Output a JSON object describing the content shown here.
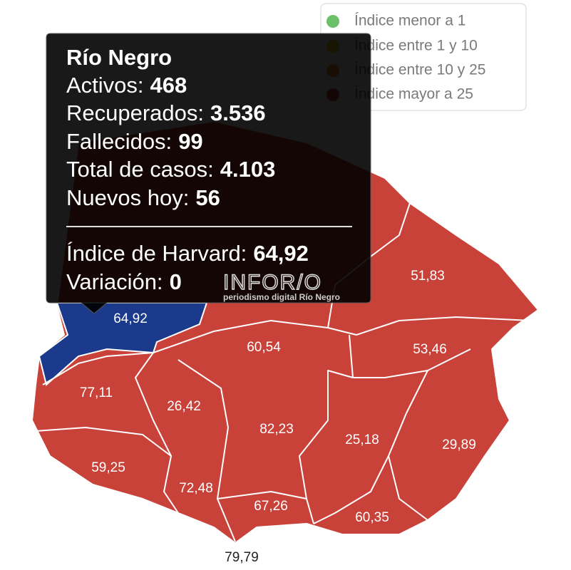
{
  "legend": [
    {
      "label": "Índice menor a 1",
      "color": "#6cc06a"
    },
    {
      "label": "Índice entre 1 y 10",
      "color": "#f2d11b"
    },
    {
      "label": "Índice entre 10 y 25",
      "color": "#f08a24"
    },
    {
      "label": "Índice mayor a 25",
      "color": "#c9423a"
    }
  ],
  "tooltip": {
    "title": "Río Negro",
    "rows": [
      {
        "label": "Activos:",
        "value": "468"
      },
      {
        "label": "Recuperados:",
        "value": "3.536"
      },
      {
        "label": "Fallecidos:",
        "value": "99"
      },
      {
        "label": "Total de casos:",
        "value": "4.103"
      },
      {
        "label": "Nuevos hoy:",
        "value": "56"
      }
    ],
    "harvard": {
      "label": "Índice de Harvard:",
      "value": "64,92"
    },
    "variation": {
      "label": "Variación:",
      "value": "0"
    }
  },
  "watermark": {
    "brand": "INFOR/O",
    "tagline": "periodismo digital Río Negro"
  },
  "regions": [
    "64,92",
    "51,83",
    "60,54",
    "53,46",
    "77,11",
    "26,42",
    "82,23",
    "25,18",
    "29,89",
    "59,25",
    "72,48",
    "67,26",
    "60,35",
    "79,79"
  ]
}
